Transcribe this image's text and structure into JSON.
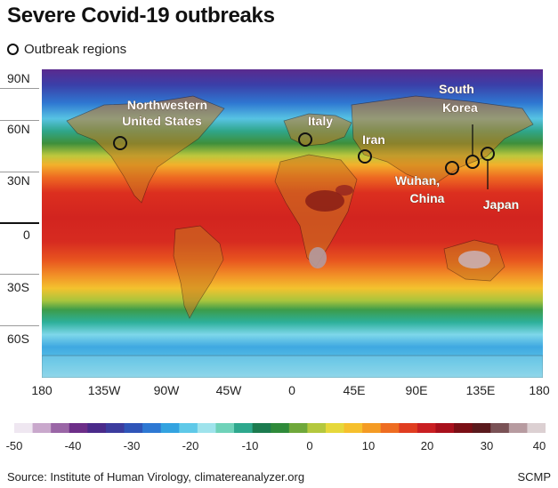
{
  "title": "Severe Covid-19 outbreaks",
  "legend": {
    "label": "Outbreak regions"
  },
  "axes": {
    "latitude_labels": [
      "90N",
      "60N",
      "30N",
      "0",
      "30S",
      "60S"
    ],
    "longitude_labels": [
      "180",
      "135W",
      "90W",
      "45W",
      "0",
      "45E",
      "90E",
      "135E",
      "180"
    ]
  },
  "regions": [
    {
      "name_lines": [
        "Northwestern",
        "United States"
      ],
      "lon": -122,
      "lat": 47
    },
    {
      "name_lines": [
        "Italy"
      ],
      "lon": 10,
      "lat": 45
    },
    {
      "name_lines": [
        "Iran"
      ],
      "lon": 52,
      "lat": 35
    },
    {
      "name_lines": [
        "Wuhan,",
        "China"
      ],
      "lon": 114,
      "lat": 30
    },
    {
      "name_lines": [
        "South",
        "Korea"
      ],
      "lon": 128,
      "lat": 36
    },
    {
      "name_lines": [
        "Japan"
      ],
      "lon": 139,
      "lat": 37
    }
  ],
  "color_scale": {
    "labels": [
      "-50",
      "-40",
      "-30",
      "-20",
      "-10",
      "0",
      "10",
      "20",
      "30",
      "40"
    ],
    "colors": [
      "#efe7f1",
      "#c9a8cc",
      "#9a66a6",
      "#6d2e88",
      "#4a2a8a",
      "#3c3c9e",
      "#2f55b8",
      "#2e78d3",
      "#33a3e0",
      "#5fc9e8",
      "#9fe3ec",
      "#6fd2b9",
      "#2ea88d",
      "#1c7b4f",
      "#2f8a3a",
      "#6fa83b",
      "#b4c83e",
      "#e6d83b",
      "#f6c02d",
      "#f49b24",
      "#ee6d21",
      "#e03d20",
      "#c91f22",
      "#a8101c",
      "#7a0f15",
      "#5a1a1d",
      "#7a5256",
      "#b79ba0",
      "#dcd0d2"
    ]
  },
  "source": "Source: Institute of Human Virology, climatereanalyzer.org",
  "credit": "SCMP"
}
